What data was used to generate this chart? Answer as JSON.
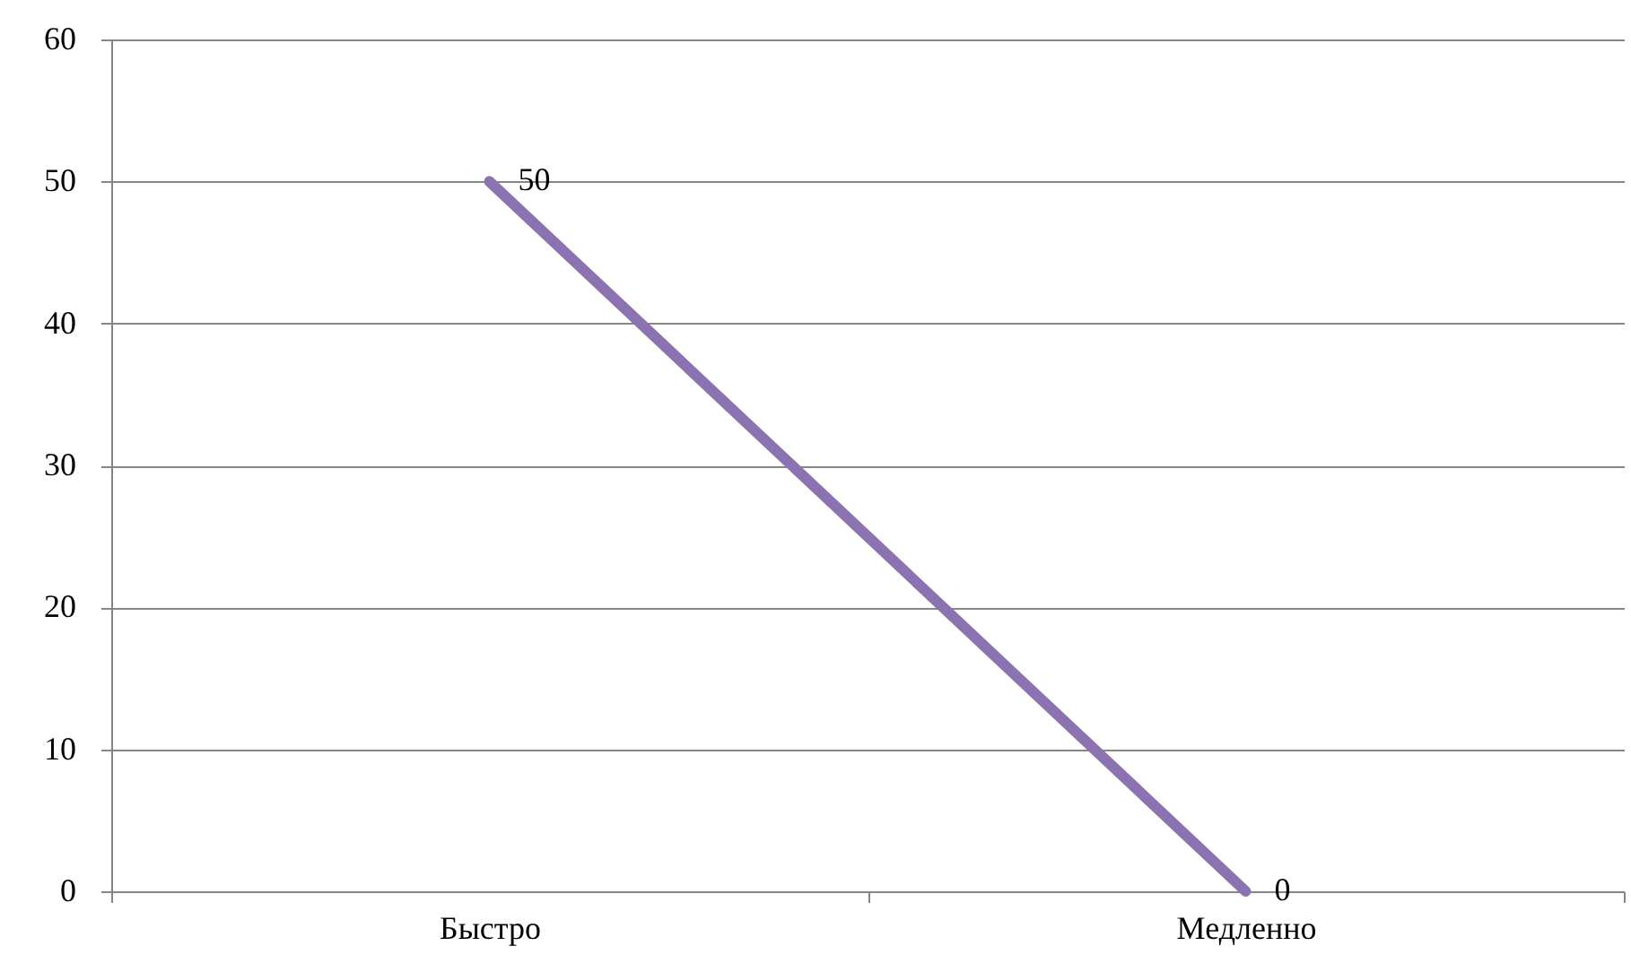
{
  "chart_data": {
    "type": "line",
    "categories": [
      "Быстро",
      "Медленно"
    ],
    "series": [
      {
        "color": "#8a73b0",
        "values": [
          50,
          0
        ]
      }
    ],
    "ylim": [
      0,
      60
    ],
    "yticks": [
      0,
      10,
      20,
      30,
      40,
      50,
      60
    ],
    "grid": "y",
    "data_labels": true,
    "line_style": "solid"
  }
}
